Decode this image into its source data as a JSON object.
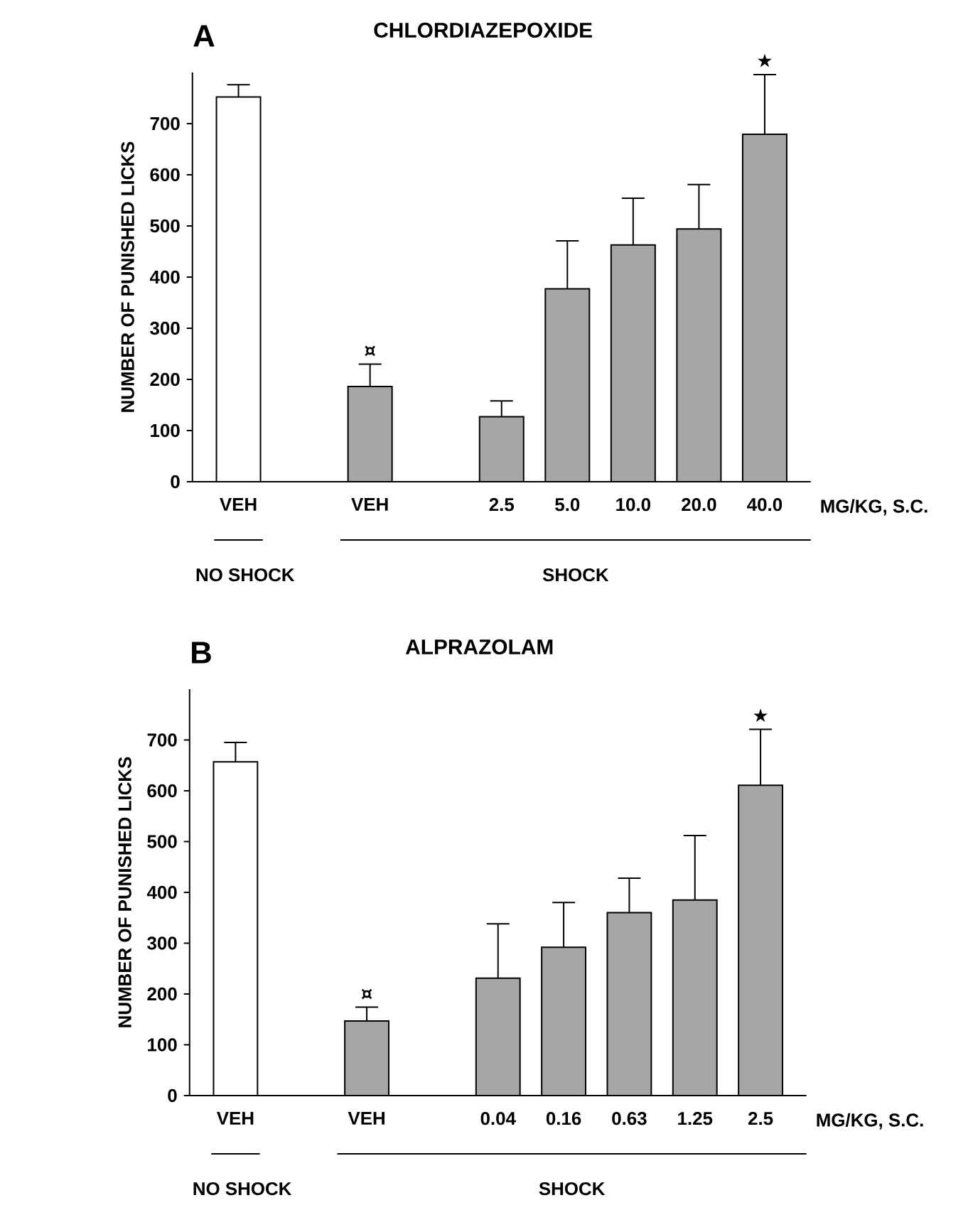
{
  "chart_data": [
    {
      "type": "bar",
      "title": "CHLORDIAZEPOXIDE",
      "ylabel": "NUMBER OF PUNISHED LICKS",
      "xlabel": "MG/KG, S.C.",
      "categories": [
        "VEH",
        null,
        "VEH",
        null,
        "2.5",
        "5.0",
        "10.0",
        "20.0",
        "40.0"
      ],
      "values": [
        752,
        null,
        186,
        null,
        127,
        377,
        463,
        494,
        679
      ],
      "errors": [
        24,
        null,
        44,
        null,
        31,
        94,
        91,
        87,
        117
      ],
      "colors": [
        "#ffffff",
        null,
        "#a6a6a6",
        null,
        "#a6a6a6",
        "#a6a6a6",
        "#a6a6a6",
        "#a6a6a6",
        "#a6a6a6"
      ],
      "ylim": [
        0,
        800
      ],
      "yticks": [
        0,
        100,
        200,
        300,
        400,
        500,
        600,
        700
      ],
      "annotations": [
        "A",
        "¤",
        {
          "text": "★",
          "x": "40.0",
          "y": 796
        },
        "NO SHOCK",
        "SHOCK"
      ]
    },
    {
      "type": "bar",
      "title": "ALPRAZOLAM",
      "ylabel": "NUMBER OF PUNISHED LICKS",
      "xlabel": "MG/KG, S.C.",
      "categories": [
        "VEH",
        null,
        "VEH",
        null,
        "0.04",
        "0.16",
        "0.63",
        "1.25",
        "2.5"
      ],
      "values": [
        657,
        null,
        147,
        null,
        231,
        292,
        360,
        385,
        611
      ],
      "errors": [
        38,
        null,
        27,
        null,
        107,
        88,
        68,
        127,
        110
      ],
      "colors": [
        "#ffffff",
        null,
        "#a6a6a6",
        null,
        "#a6a6a6",
        "#a6a6a6",
        "#a6a6a6",
        "#a6a6a6",
        "#a6a6a6"
      ],
      "ylim": [
        0,
        800
      ],
      "yticks": [
        0,
        100,
        200,
        300,
        400,
        500,
        600,
        700
      ],
      "annotations": [
        "B",
        "¤",
        {
          "text": "★",
          "x": "2.5",
          "y": 721
        },
        "NO SHOCK",
        "SHOCK"
      ]
    }
  ]
}
